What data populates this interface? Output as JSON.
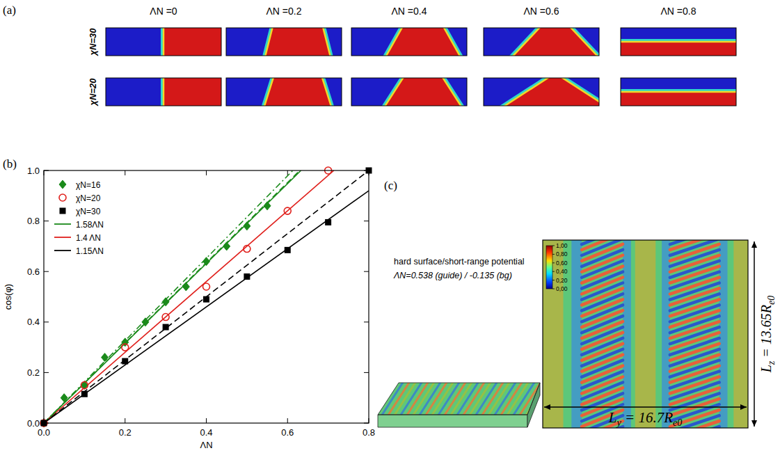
{
  "panel_a": {
    "letter": "(a)",
    "columns": [
      "ΛN =0",
      "ΛN =0.2",
      "ΛN =0.4",
      "ΛN =0.6",
      "ΛN =0.8"
    ],
    "rows": [
      {
        "label": "χN=30",
        "cos_phi": [
          0,
          0.245,
          0.49,
          0.685,
          1.0
        ]
      },
      {
        "label": "χN=20",
        "cos_phi": [
          0,
          0.3,
          0.54,
          0.84,
          1.0
        ]
      }
    ]
  },
  "panel_b": {
    "letter": "(b)"
  },
  "chart_data": {
    "type": "scatter",
    "x_label": "ΛN",
    "y_label": "cos(φ)",
    "xlim": [
      0,
      0.8
    ],
    "ylim": [
      0,
      1
    ],
    "xticks": [
      {
        "value": 0,
        "label": "0.0"
      },
      0.2,
      0.4,
      0.6,
      0.8
    ],
    "yticks": [
      {
        "value": 0,
        "label": "0.0"
      },
      0.2,
      0.4,
      0.6,
      0.8,
      {
        "value": 1,
        "label": "1.0"
      }
    ],
    "grid": false,
    "legend": "upper left",
    "series": [
      {
        "name": "χN=16",
        "type": "scatter",
        "color": "#1a8a1a",
        "marker": "diamond",
        "x": [
          0,
          0.05,
          0.1,
          0.15,
          0.2,
          0.25,
          0.3,
          0.35,
          0.4,
          0.45,
          0.5,
          0.55
        ],
        "values": [
          0,
          0.1,
          0.15,
          0.26,
          0.32,
          0.4,
          0.48,
          0.54,
          0.64,
          0.7,
          0.78,
          0.86
        ]
      },
      {
        "name": "χN=20",
        "type": "scatter",
        "color": "#e0201c",
        "marker": "open_circle",
        "x": [
          0,
          0.1,
          0.2,
          0.3,
          0.4,
          0.5,
          0.6,
          0.7
        ],
        "values": [
          0,
          0.15,
          0.3,
          0.42,
          0.54,
          0.69,
          0.84,
          1.0
        ]
      },
      {
        "name": "χN=30",
        "type": "scatter",
        "color": "#000000",
        "marker": "square",
        "x": [
          0,
          0.1,
          0.2,
          0.3,
          0.4,
          0.5,
          0.6,
          0.7,
          0.8
        ],
        "values": [
          0,
          0.115,
          0.245,
          0.38,
          0.49,
          0.58,
          0.685,
          0.795,
          1.0
        ]
      },
      {
        "name": "1.58ΛN",
        "type": "line",
        "color": "#1a8a1a",
        "line_style": "solid",
        "x": [
          0,
          0.633
        ],
        "values": [
          0,
          1.0
        ]
      },
      {
        "name": "1.4 ΛN",
        "type": "line",
        "color": "#e0201c",
        "line_style": "solid",
        "x": [
          0,
          0.714
        ],
        "values": [
          0,
          1.0
        ]
      },
      {
        "name": "1.15ΛN",
        "type": "line",
        "color": "#000000",
        "line_style": "solid",
        "x": [
          0,
          0.8
        ],
        "values": [
          0,
          0.92
        ]
      },
      {
        "type": "line",
        "color": "#1a8a1a",
        "line_style": "dashdot",
        "x": [
          0,
          0.613
        ],
        "values": [
          0,
          1.0
        ]
      },
      {
        "type": "line",
        "color": "#1a8a1a",
        "line_style": "dashed",
        "x": [
          0,
          0.63
        ],
        "values": [
          0,
          1.0
        ]
      },
      {
        "type": "line",
        "color": "#000000",
        "line_style": "dashed",
        "x": [
          0,
          0.8
        ],
        "values": [
          0,
          1.0
        ]
      }
    ]
  },
  "panel_c": {
    "letter": "(c)",
    "caption": [
      "hard surface/short-range potential",
      "ΛN=0.538 (guide) / -0.135 (bg)"
    ],
    "colorbar": {
      "range": [
        0,
        1
      ],
      "ticks": [
        {
          "value": 1,
          "label": "1,00"
        },
        {
          "value": 0.8,
          "label": "0,80"
        },
        {
          "value": 0.6,
          "label": "0,60"
        },
        {
          "value": 0.4,
          "label": "0,40"
        },
        {
          "value": 0.2,
          "label": "0,20"
        },
        {
          "value": 0,
          "label": "0,00"
        }
      ]
    },
    "ly_label": [
      "L",
      "y",
      " = 16.7R",
      "e0"
    ],
    "lz_label": [
      "L",
      "z",
      " = 13.65R",
      "e0"
    ]
  }
}
